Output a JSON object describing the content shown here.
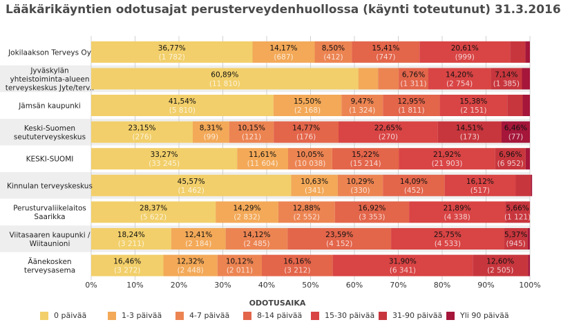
{
  "title": "Lääkärikäyntien odotusajat perusterveydenhuollossa (käynti toteutunut) 31.3.2016",
  "chart_data": {
    "type": "bar",
    "orientation": "horizontal",
    "stacked": "percent",
    "title": "Lääkärikäyntien odotusajat perusterveydenhuollossa (käynti toteutunut) 31.3.2016",
    "xlabel": "ODOTUSAIKA",
    "ylabel": "",
    "xlim": [
      0,
      100
    ],
    "x_ticks": [
      "0%",
      "10%",
      "20%",
      "30%",
      "40%",
      "50%",
      "60%",
      "70%",
      "80%",
      "90%",
      "100%"
    ],
    "grid": true,
    "legend": "bottom",
    "categories": [
      [
        "Jokilaakson Terveys Oy"
      ],
      [
        "Jyväskylän",
        "yhteistoiminta-alueen",
        "terveyskeskus Jyte/terv.."
      ],
      [
        "Jämsän kaupunki"
      ],
      [
        "Keski-Suomen",
        "seututerveyskeskus"
      ],
      [
        "KESKI-SUOMI"
      ],
      [
        "Kinnulan terveyskeskus"
      ],
      [
        "Perusturvaliikelaitos",
        "Saarikka"
      ],
      [
        "Viitasaaren kaupunki /",
        "Wiitaunioni"
      ],
      [
        "Äänekosken",
        "terveysasema"
      ]
    ],
    "series": [
      {
        "name": "0 päivää",
        "color": "#f2cf6a",
        "values": [
          36.77,
          60.89,
          41.54,
          23.15,
          33.27,
          45.57,
          28.37,
          18.24,
          16.46
        ],
        "labels": [
          "36,77%",
          "60,89%",
          "41,54%",
          "23,15%",
          "33,27%",
          "45,57%",
          "28,37%",
          "18,24%",
          "16,46%"
        ],
        "counts": [
          "(1 782)",
          "(11 810)",
          "(5 810)",
          "(276)",
          "(33 245)",
          "(1 462)",
          "(5 622)",
          "(3 211)",
          "(3 272)"
        ]
      },
      {
        "name": "1-3 päivää",
        "color": "#f3a958",
        "values": [
          14.17,
          4.5,
          15.5,
          8.31,
          11.61,
          10.63,
          14.29,
          12.41,
          12.32
        ],
        "labels": [
          "14,17%",
          "",
          "15,50%",
          "8,31%",
          "11,61%",
          "10,63%",
          "14,29%",
          "12,41%",
          "12,32%"
        ],
        "counts": [
          "(687)",
          "",
          "(2 168)",
          "(99)",
          "(11 604)",
          "(341)",
          "(2 832)",
          "(2 184)",
          "(2 448)"
        ]
      },
      {
        "name": "4-7 päivää",
        "color": "#ec8452",
        "values": [
          8.5,
          4.7,
          9.47,
          10.15,
          10.05,
          10.29,
          12.88,
          14.12,
          10.12
        ],
        "labels": [
          "8,50%",
          "",
          "9,47%",
          "10,15%",
          "10,05%",
          "10,29%",
          "12,88%",
          "14,12%",
          "10,12%"
        ],
        "counts": [
          "(412)",
          "",
          "(1 324)",
          "(121)",
          "(10 038)",
          "(330)",
          "(2 552)",
          "(2 485)",
          "(2 011)"
        ]
      },
      {
        "name": "8-14 päivää",
        "color": "#e3654a",
        "values": [
          15.41,
          6.76,
          12.95,
          14.77,
          15.22,
          14.09,
          16.92,
          23.59,
          16.16
        ],
        "labels": [
          "15,41%",
          "6,76%",
          "12,95%",
          "14,77%",
          "15,22%",
          "14,09%",
          "16,92%",
          "23,59%",
          "16,16%"
        ],
        "counts": [
          "(747)",
          "(1 311)",
          "(1 811)",
          "(176)",
          "(15 214)",
          "(452)",
          "(3 353)",
          "(4 152)",
          "(3 212)"
        ]
      },
      {
        "name": "15-30 päivää",
        "color": "#d94444",
        "values": [
          20.61,
          14.2,
          15.38,
          22.65,
          21.92,
          16.12,
          21.89,
          25.75,
          31.9
        ],
        "labels": [
          "20,61%",
          "14,20%",
          "15,38%",
          "22,65%",
          "21,92%",
          "16,12%",
          "21,89%",
          "25,75%",
          "31,90%"
        ],
        "counts": [
          "(999)",
          "(2 754)",
          "(2 151)",
          "(270)",
          "(21 903)",
          "(517)",
          "(4 338)",
          "(4 533)",
          "(6 341)"
        ]
      },
      {
        "name": "31-90 päivää",
        "color": "#c8363d",
        "values": [
          3.5,
          7.14,
          3.5,
          14.51,
          6.96,
          3.5,
          5.66,
          5.37,
          12.6
        ],
        "labels": [
          "",
          "7,14%",
          "",
          "14,51%",
          "6,96%",
          "",
          "5,66%",
          "5,37%",
          "12,60%"
        ],
        "counts": [
          "",
          "(1 385)",
          "",
          "(173)",
          "(6 952)",
          "",
          "(1 121)",
          "(945)",
          "(2 505)"
        ]
      },
      {
        "name": "Yli 90 päivää",
        "color": "#a5163a",
        "values": [
          1.04,
          1.81,
          1.66,
          6.46,
          0.97,
          0.3,
          0.0,
          0.5,
          0.44
        ],
        "labels": [
          "",
          "",
          "",
          "6,46%",
          "",
          "",
          "",
          "",
          ""
        ],
        "counts": [
          "",
          "",
          "",
          "(77)",
          "",
          "",
          "",
          "",
          ""
        ]
      }
    ]
  }
}
